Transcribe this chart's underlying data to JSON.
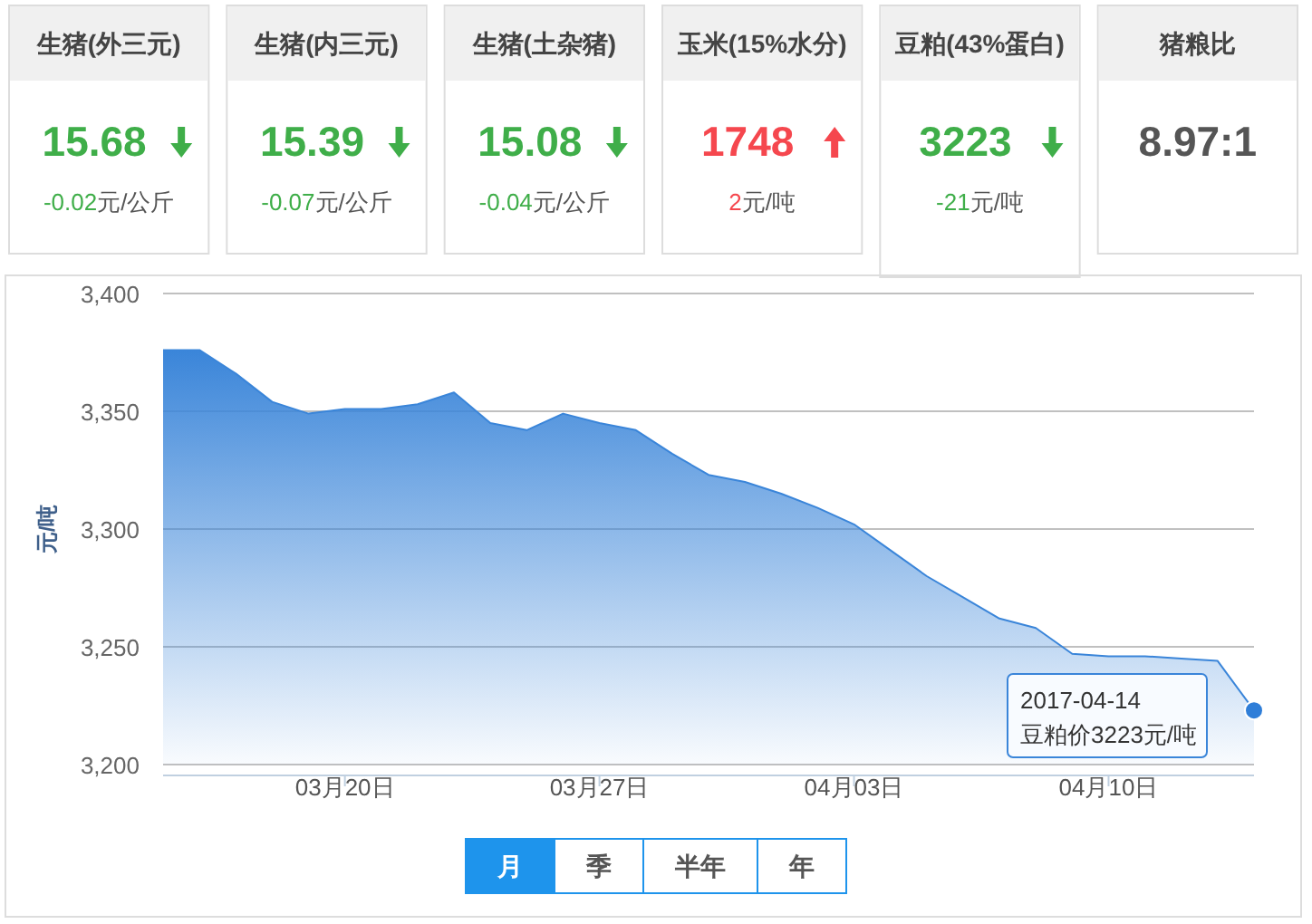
{
  "chart_data": [
    {
      "type": "other",
      "categories": [
        "生猪(外三元)",
        "生猪(内三元)",
        "生猪(土杂猪)",
        "玉米(15%水分)",
        "豆粕(43%蛋白)",
        "猪粮比"
      ],
      "value_labels": [
        "15.68",
        "15.39",
        "15.08",
        "1748",
        "3223",
        "8.97:1"
      ],
      "annotations": [
        "-0.02元/公斤",
        "-0.07元/公斤",
        "-0.04元/公斤",
        "2元/吨",
        "-21元/吨",
        null
      ],
      "colors": [
        "#3fae49",
        "#3fae49",
        "#3fae49",
        "#f5474e",
        "#3fae49",
        "#555555"
      ]
    },
    {
      "type": "area",
      "ylabel": "元/吨",
      "x": [
        "2017-03-15",
        "2017-03-16",
        "2017-03-17",
        "2017-03-18",
        "2017-03-19",
        "2017-03-20",
        "2017-03-21",
        "2017-03-22",
        "2017-03-23",
        "2017-03-24",
        "2017-03-25",
        "2017-03-26",
        "2017-03-27",
        "2017-03-28",
        "2017-03-29",
        "2017-03-30",
        "2017-03-31",
        "2017-04-01",
        "2017-04-02",
        "2017-04-03",
        "2017-04-04",
        "2017-04-05",
        "2017-04-06",
        "2017-04-07",
        "2017-04-08",
        "2017-04-09",
        "2017-04-10",
        "2017-04-11",
        "2017-04-12",
        "2017-04-13",
        "2017-04-14"
      ],
      "series": [
        {
          "color": "#3a85d9",
          "values": [
            3376,
            3376,
            3366,
            3354,
            3349,
            3351,
            3351,
            3353,
            3358,
            3345,
            3342,
            3349,
            3345,
            3342,
            3332,
            3323,
            3320,
            3315,
            3309,
            3302,
            3291,
            3280,
            3271,
            3262,
            3258,
            3247,
            3246,
            3246,
            3245,
            3244,
            3223
          ]
        }
      ],
      "xlim": [
        "2017-03-15",
        "2017-04-14"
      ],
      "xticks": [
        {
          "value": "2017-03-20",
          "label": "03月20日"
        },
        {
          "value": "2017-03-27",
          "label": "03月27日"
        },
        {
          "value": "2017-04-03",
          "label": "04月03日"
        },
        {
          "value": "2017-04-10",
          "label": "04月10日"
        }
      ],
      "ylim": [
        3200,
        3400
      ],
      "yticks": [
        {
          "value": 3200,
          "label": "3,200"
        },
        {
          "value": 3250,
          "label": "3,250"
        },
        {
          "value": 3300,
          "label": "3,300"
        },
        {
          "value": 3350,
          "label": "3,350"
        },
        {
          "value": 3400,
          "label": "3,400"
        }
      ],
      "grid": "y",
      "annotations": [
        {
          "text": "2017-04-14\n豆粕价3223元/吨",
          "x": "2017-04-14",
          "y": 3223
        }
      ]
    },
    {
      "type": "other",
      "categories": [
        "月",
        "季",
        "半年",
        "年"
      ],
      "colors": [
        "#1e94ec",
        "#ffffff",
        "#ffffff",
        "#ffffff"
      ]
    }
  ]
}
